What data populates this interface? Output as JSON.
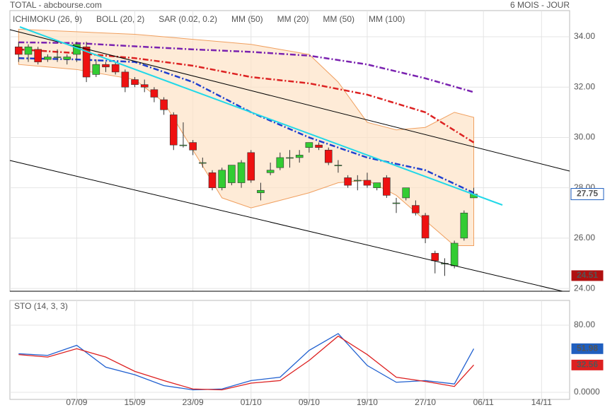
{
  "header": {
    "title": "TOTAL - abcbourse.com",
    "period": "6 MOIS - JOUR"
  },
  "chart_data": [
    {
      "type": "candlestick",
      "legend": [
        {
          "label": "ICHIMOKU (26, 9)",
          "color": "#1f5fc0"
        },
        {
          "label": "BOLL (20, 2)",
          "color": "#f0a060"
        },
        {
          "label": "SAR (0.02, 0.2)",
          "color": "#c00000"
        },
        {
          "label": "MM (50)",
          "color": "#dd2222"
        },
        {
          "label": "MM (20)",
          "color": "#1f3fd0"
        },
        {
          "label": "MM (50)",
          "color": "#dd2222"
        },
        {
          "label": "MM (100)",
          "color": "#7a22b0"
        }
      ],
      "xlim": [
        -0.9,
        56.9
      ],
      "xticks": [
        {
          "value": 6,
          "label": "07/09"
        },
        {
          "value": 12,
          "label": "15/09"
        },
        {
          "value": 18,
          "label": "23/09"
        },
        {
          "value": 24,
          "label": "01/10"
        },
        {
          "value": 30,
          "label": "09/10"
        },
        {
          "value": 36,
          "label": "19/10"
        },
        {
          "value": 42,
          "label": "27/10"
        },
        {
          "value": 48,
          "label": "06/11"
        },
        {
          "value": 54,
          "label": "14/11"
        }
      ],
      "ylim": [
        23.89,
        35.04
      ],
      "yticks": [
        {
          "value": 24,
          "label": "24.00"
        },
        {
          "value": 26,
          "label": "26.00"
        },
        {
          "value": 28,
          "label": "28.00"
        },
        {
          "value": 30,
          "label": "30.00"
        },
        {
          "value": 32,
          "label": "32.00"
        },
        {
          "value": 34,
          "label": "34.00"
        }
      ],
      "grid": true,
      "up_color": "#33cc33",
      "down_color": "#ee1111",
      "open": [
        33.6,
        33.3,
        33.5,
        33.1,
        33.2,
        33.1,
        33.3,
        33.6,
        32.5,
        32.9,
        32.9,
        32.6,
        32.3,
        32.1,
        31.9,
        31.5,
        30.9,
        29.7,
        29.8,
        29.0,
        28.6,
        28.0,
        28.2,
        28.2,
        29.4,
        27.8,
        28.6,
        28.8,
        29.2,
        29.2,
        29.6,
        29.7,
        29.5,
        28.9,
        28.4,
        28.3,
        28.3,
        28.0,
        28.4,
        27.4,
        27.6,
        27.3,
        26.9,
        25.4,
        25.0,
        24.9,
        26.0,
        27.6
      ],
      "high": [
        33.8,
        33.7,
        33.6,
        33.3,
        33.5,
        33.3,
        33.8,
        33.8,
        33.1,
        33.0,
        33.0,
        32.7,
        32.4,
        32.3,
        32.0,
        31.6,
        31.0,
        30.6,
        29.9,
        29.2,
        28.7,
        28.8,
        28.9,
        29.1,
        29.5,
        28.2,
        29.0,
        29.4,
        29.5,
        29.5,
        29.8,
        29.8,
        29.6,
        29.1,
        28.5,
        28.5,
        28.6,
        28.2,
        28.5,
        27.6,
        28.0,
        27.5,
        27.0,
        25.5,
        25.2,
        25.9,
        27.1,
        28.0
      ],
      "low": [
        33.0,
        33.0,
        32.9,
        33.0,
        33.0,
        32.9,
        33.0,
        32.2,
        32.4,
        32.6,
        32.5,
        31.8,
        32.0,
        31.8,
        31.4,
        30.9,
        29.5,
        29.6,
        29.3,
        28.8,
        27.9,
        27.9,
        28.1,
        28.0,
        28.2,
        27.5,
        28.5,
        28.7,
        28.8,
        29.0,
        29.4,
        29.5,
        28.9,
        28.6,
        28.0,
        27.9,
        28.0,
        27.9,
        27.6,
        27.0,
        27.5,
        26.9,
        25.8,
        24.6,
        24.5,
        24.8,
        25.9,
        27.6
      ],
      "close": [
        33.3,
        33.6,
        33.0,
        33.2,
        33.2,
        33.2,
        33.7,
        32.4,
        32.9,
        32.8,
        32.6,
        32.0,
        32.1,
        32.0,
        31.6,
        31.1,
        29.7,
        29.7,
        29.5,
        29.0,
        28.0,
        28.7,
        28.9,
        29.0,
        28.3,
        27.9,
        28.7,
        29.2,
        29.2,
        29.3,
        29.8,
        29.6,
        29.0,
        28.9,
        28.1,
        28.3,
        28.1,
        28.2,
        27.7,
        27.4,
        28.0,
        27.0,
        26.0,
        25.1,
        25.0,
        25.8,
        27.0,
        27.75
      ],
      "band": {
        "color": "#fde3c6",
        "edge": "#f0a060",
        "x": [
          0,
          3,
          6,
          9,
          12,
          15,
          18,
          21,
          24,
          27,
          30,
          33,
          36,
          39,
          42,
          45,
          47
        ],
        "upper": [
          34.3,
          34.25,
          34.2,
          34.15,
          34.1,
          34.0,
          33.9,
          33.8,
          33.7,
          33.5,
          33.3,
          32.2,
          30.6,
          30.3,
          30.4,
          31.0,
          30.8
        ],
        "lower": [
          32.9,
          32.8,
          32.7,
          32.5,
          32.3,
          31.4,
          29.5,
          27.6,
          27.2,
          27.5,
          27.8,
          28.2,
          28.3,
          27.7,
          26.7,
          25.7,
          25.7
        ]
      },
      "series": [
        {
          "color": "#7a22b0",
          "x": [
            0,
            6,
            12,
            18,
            24,
            30,
            36,
            42,
            47
          ],
          "values": [
            33.78,
            33.75,
            33.62,
            33.5,
            33.4,
            33.25,
            32.9,
            32.35,
            31.8
          ]
        },
        {
          "color": "#dd2222",
          "x": [
            0,
            6,
            12,
            18,
            24,
            30,
            36,
            42,
            47
          ],
          "values": [
            33.5,
            33.35,
            33.15,
            32.85,
            32.4,
            32.15,
            31.7,
            31.0,
            29.8
          ]
        },
        {
          "color": "#1f3fd0",
          "x": [
            0,
            6,
            12,
            18,
            24,
            30,
            36,
            42,
            47
          ],
          "values": [
            33.15,
            33.1,
            33.0,
            32.2,
            31.0,
            30.0,
            29.2,
            28.7,
            27.8
          ]
        }
      ],
      "badges": [
        {
          "value": 27.75,
          "fill": "#ffffff",
          "text": "#1f5fc0"
        },
        {
          "value": 24.51,
          "fill": "#b01010",
          "text": "#ffffff"
        }
      ]
    },
    {
      "type": "line",
      "title": "STO (14, 3, 3)",
      "xlim": [
        -0.9,
        56.9
      ],
      "ylim": [
        -8.4,
        109.5
      ],
      "yticks": [
        {
          "value": 0,
          "label": "0.0000"
        },
        {
          "value": 80,
          "label": "80.00"
        }
      ],
      "x": [
        0,
        3,
        6,
        9,
        12,
        15,
        18,
        21,
        24,
        27,
        30,
        33,
        36,
        39,
        42,
        45,
        47
      ],
      "series": [
        {
          "color": "#2060d0",
          "values": [
            46,
            44,
            56,
            30,
            21,
            8,
            3,
            4,
            14,
            18,
            50,
            70,
            32,
            12,
            14,
            10,
            51.98
          ]
        },
        {
          "color": "#dd2020",
          "values": [
            45,
            42,
            52,
            42,
            25,
            14,
            4,
            3,
            11,
            14,
            38,
            67,
            45,
            18,
            13,
            7,
            32.56
          ]
        }
      ],
      "badges": [
        {
          "value": 51.98,
          "fill": "#1f5fc0",
          "text": "#ffffff"
        },
        {
          "value": 32.56,
          "fill": "#dd2020",
          "text": "#ffffff"
        }
      ]
    }
  ]
}
